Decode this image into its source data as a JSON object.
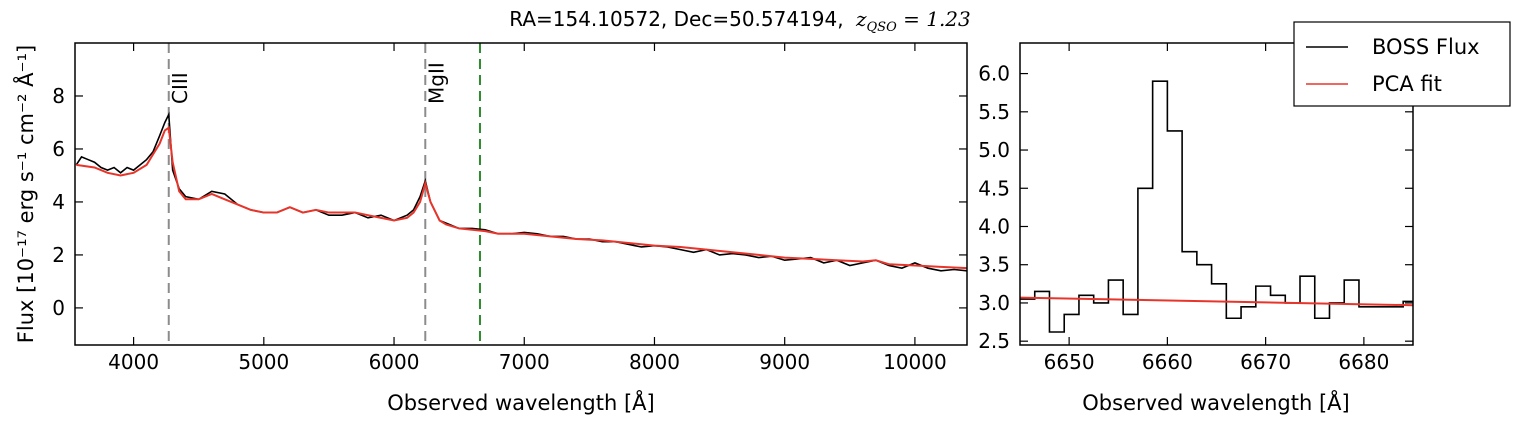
{
  "title": {
    "prefix": "RA=154.10572, Dec=50.574194,",
    "z_label": "z",
    "z_sub": "QSO",
    "z_value": " = 1.23"
  },
  "colors": {
    "flux": "#000000",
    "fit": "#e8352b",
    "line_marker": "#8c8c8c",
    "target_marker": "#2e8b2e"
  },
  "legend": {
    "placement": "top-right",
    "entries": [
      "BOSS Flux",
      "PCA fit"
    ]
  },
  "chart_data": [
    {
      "type": "line",
      "xlabel": "Observed wavelength [Å]",
      "ylabel": "Flux [10⁻¹⁷ erg s⁻¹ cm⁻² Å⁻¹]",
      "xlim": [
        3550,
        10400
      ],
      "ylim": [
        -1.4,
        10.0
      ],
      "xticks": [
        4000,
        5000,
        6000,
        7000,
        8000,
        9000,
        10000
      ],
      "yticks": [
        0,
        2,
        4,
        6,
        8
      ],
      "grid": false,
      "emission_lines": [
        {
          "name": "CIII",
          "x": 4270
        },
        {
          "name": "MgII",
          "x": 6240
        }
      ],
      "target_line_x": 6660,
      "series": [
        {
          "name": "BOSS Flux",
          "x": [
            3560,
            3600,
            3650,
            3700,
            3750,
            3800,
            3850,
            3900,
            3950,
            4000,
            4050,
            4100,
            4150,
            4200,
            4240,
            4270,
            4300,
            4350,
            4400,
            4500,
            4600,
            4700,
            4800,
            4900,
            5000,
            5100,
            5200,
            5300,
            5400,
            5500,
            5600,
            5700,
            5800,
            5900,
            6000,
            6100,
            6150,
            6200,
            6240,
            6280,
            6350,
            6400,
            6500,
            6600,
            6700,
            6800,
            6900,
            7000,
            7100,
            7200,
            7300,
            7400,
            7500,
            7600,
            7700,
            7800,
            7900,
            8000,
            8100,
            8200,
            8300,
            8400,
            8500,
            8600,
            8700,
            8800,
            8900,
            9000,
            9100,
            9200,
            9300,
            9400,
            9500,
            9600,
            9700,
            9800,
            9900,
            10000,
            10100,
            10200,
            10300,
            10400
          ],
          "y": [
            5.4,
            5.7,
            5.6,
            5.5,
            5.3,
            5.2,
            5.3,
            5.1,
            5.3,
            5.2,
            5.4,
            5.6,
            5.9,
            6.5,
            7.0,
            7.3,
            5.2,
            4.5,
            4.2,
            4.1,
            4.4,
            4.3,
            3.9,
            3.7,
            3.6,
            3.6,
            3.8,
            3.6,
            3.7,
            3.5,
            3.5,
            3.6,
            3.4,
            3.5,
            3.3,
            3.5,
            3.7,
            4.2,
            4.8,
            4.0,
            3.3,
            3.2,
            3.0,
            3.0,
            2.95,
            2.8,
            2.8,
            2.85,
            2.8,
            2.7,
            2.7,
            2.6,
            2.6,
            2.5,
            2.5,
            2.4,
            2.3,
            2.35,
            2.3,
            2.2,
            2.1,
            2.2,
            2.0,
            2.05,
            2.0,
            1.9,
            1.95,
            1.8,
            1.85,
            1.9,
            1.7,
            1.8,
            1.6,
            1.7,
            1.8,
            1.6,
            1.5,
            1.7,
            1.5,
            1.4,
            1.45,
            1.4
          ]
        },
        {
          "name": "PCA fit",
          "x": [
            3560,
            3700,
            3800,
            3900,
            4000,
            4100,
            4150,
            4200,
            4240,
            4270,
            4300,
            4350,
            4400,
            4500,
            4600,
            4700,
            4800,
            4900,
            5000,
            5100,
            5200,
            5300,
            5400,
            5500,
            5600,
            5700,
            5800,
            5900,
            6000,
            6100,
            6150,
            6200,
            6240,
            6280,
            6350,
            6400,
            6500,
            6600,
            6700,
            6800,
            6900,
            7000,
            7200,
            7400,
            7600,
            7800,
            8000,
            8200,
            8400,
            8600,
            8800,
            9000,
            9200,
            9400,
            9600,
            9700,
            9800,
            10000,
            10200,
            10400
          ],
          "y": [
            5.4,
            5.3,
            5.1,
            5.0,
            5.1,
            5.4,
            5.8,
            6.2,
            6.7,
            6.8,
            5.5,
            4.4,
            4.1,
            4.1,
            4.3,
            4.1,
            3.9,
            3.7,
            3.6,
            3.6,
            3.8,
            3.6,
            3.7,
            3.6,
            3.6,
            3.6,
            3.5,
            3.4,
            3.3,
            3.4,
            3.6,
            4.0,
            4.7,
            4.0,
            3.3,
            3.15,
            3.0,
            2.95,
            2.9,
            2.8,
            2.8,
            2.8,
            2.7,
            2.6,
            2.55,
            2.45,
            2.35,
            2.3,
            2.2,
            2.1,
            2.0,
            1.9,
            1.85,
            1.8,
            1.75,
            1.8,
            1.65,
            1.6,
            1.55,
            1.5
          ]
        }
      ]
    },
    {
      "type": "line",
      "xlabel": "Observed wavelength [Å]",
      "ylabel": "",
      "xlim": [
        6645,
        6685
      ],
      "ylim": [
        2.45,
        6.4
      ],
      "xticks": [
        6650,
        6660,
        6670,
        6680
      ],
      "yticks": [
        2.5,
        3.0,
        3.5,
        4.0,
        4.5,
        5.0,
        5.5,
        6.0
      ],
      "grid": false,
      "series": [
        {
          "name": "BOSS Flux",
          "step": true,
          "x": [
            6645,
            6646.5,
            6648,
            6649.5,
            6651,
            6652.5,
            6654,
            6655.5,
            6657,
            6658.5,
            6660,
            6661.5,
            6663,
            6664.5,
            6666,
            6667.5,
            6669,
            6670.5,
            6672,
            6673.5,
            6675,
            6676.5,
            6678,
            6679.5,
            6681,
            6682.5,
            6684
          ],
          "y": [
            3.05,
            3.15,
            2.62,
            2.85,
            3.1,
            3.0,
            3.3,
            2.85,
            4.5,
            5.9,
            5.25,
            3.67,
            3.5,
            3.25,
            2.8,
            2.95,
            3.22,
            3.1,
            3.0,
            3.35,
            2.8,
            3.0,
            3.3,
            2.95,
            2.95,
            2.95,
            3.02
          ]
        },
        {
          "name": "PCA fit",
          "x": [
            6645,
            6685
          ],
          "y": [
            3.07,
            2.97
          ]
        }
      ]
    }
  ]
}
